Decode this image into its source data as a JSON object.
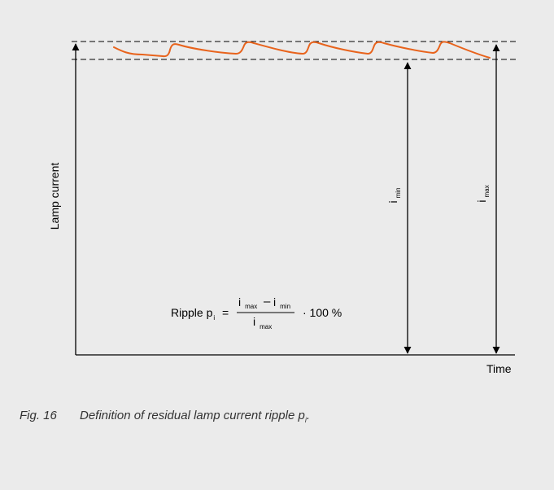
{
  "diagram": {
    "y_axis_label": "Lamp current",
    "x_axis_label": "Time",
    "i_min": {
      "base": "i",
      "sub": "min"
    },
    "i_max": {
      "base": "i",
      "sub": "max"
    },
    "formula": {
      "prefix": "Ripple p",
      "prefix_sub": "i",
      "equals": "=",
      "num_a": "i",
      "num_a_sub": "max",
      "minus": "–",
      "num_b": "i",
      "num_b_sub": "min",
      "den": "i",
      "den_sub": "max",
      "suffix": "·  100 %"
    },
    "colors": {
      "waveform": "#e8631c",
      "lines": "#000000",
      "background": "#ebebeb"
    }
  },
  "caption": {
    "number": "Fig. 16",
    "text": "Definition of residual lamp current ripple p",
    "sub": "i",
    "end": "."
  }
}
